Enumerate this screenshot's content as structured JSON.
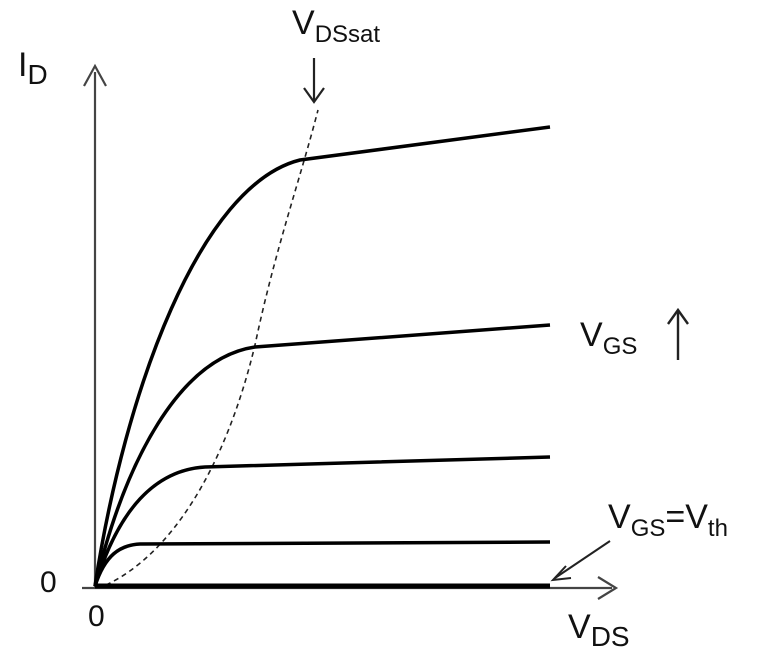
{
  "diagram": {
    "colors": {
      "curve": "#000000",
      "axis": "#444444",
      "text": "#111111"
    },
    "axes": {
      "y_main": "I",
      "y_sub": "D",
      "x_main": "V",
      "x_sub": "DS",
      "origin_x": "0",
      "origin_y": "0"
    },
    "annotations": {
      "vdssat_main": "V",
      "vdssat_sub": "DSsat",
      "vgs_up_main": "V",
      "vgs_up_sub": "GS",
      "vgs_th_main": "V",
      "vgs_th_sub": "GS",
      "vgs_th_eq": "=V",
      "vgs_th_sub2": "th"
    },
    "icons": [
      "down-arrow-icon",
      "up-arrow-icon",
      "pointer-arrow-icon"
    ],
    "curves": [
      {
        "name": "vgs-threshold",
        "level": 0
      },
      {
        "name": "vgs-level-1",
        "level": 1
      },
      {
        "name": "vgs-level-2",
        "level": 2
      },
      {
        "name": "vgs-level-3",
        "level": 3
      },
      {
        "name": "vgs-level-4",
        "level": 4
      }
    ]
  }
}
